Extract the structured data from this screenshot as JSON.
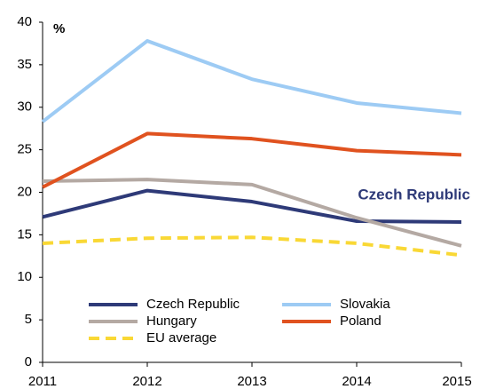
{
  "chart_data": {
    "type": "line",
    "y_label": "%",
    "annotation": "Czech Republic",
    "x": [
      2011,
      2012,
      2013,
      2014,
      2015
    ],
    "xlim": [
      2011,
      2015
    ],
    "xticks": [
      2011,
      2012,
      2013,
      2014,
      2015
    ],
    "ylim": [
      0,
      40
    ],
    "yticks": [
      0,
      5,
      10,
      15,
      20,
      25,
      30,
      35,
      40
    ],
    "grid": false,
    "series": [
      {
        "name": "Czech Republic",
        "color": "#2e3a78",
        "dash": false,
        "values": [
          17.1,
          20.2,
          18.9,
          16.6,
          16.5
        ]
      },
      {
        "name": "Slovakia",
        "color": "#9dcbf4",
        "dash": false,
        "values": [
          28.3,
          37.8,
          33.3,
          30.5,
          29.3
        ]
      },
      {
        "name": "Hungary",
        "color": "#b4a9a3",
        "dash": false,
        "values": [
          21.3,
          21.5,
          20.9,
          17.0,
          13.7
        ]
      },
      {
        "name": "Poland",
        "color": "#e0521f",
        "dash": false,
        "values": [
          20.6,
          26.9,
          26.3,
          24.9,
          24.4
        ]
      },
      {
        "name": "EU average",
        "color": "#f9d835",
        "dash": true,
        "values": [
          14.0,
          14.6,
          14.7,
          14.0,
          12.6
        ]
      }
    ]
  }
}
